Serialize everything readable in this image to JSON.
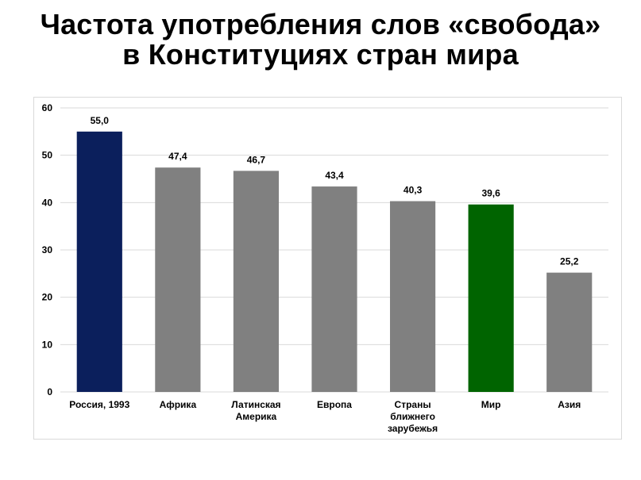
{
  "page": {
    "title_line1": "Частота употребления слов «свобода»",
    "title_line2": "в Конституциях стран мира"
  },
  "chart_data": {
    "type": "bar",
    "categories": [
      [
        "Россия, 1993"
      ],
      [
        "Африка"
      ],
      [
        "Латинская",
        "Америка"
      ],
      [
        "Европа"
      ],
      [
        "Страны",
        "ближнего",
        "зарубежья"
      ],
      [
        "Мир"
      ],
      [
        "Азия"
      ]
    ],
    "values": [
      55.0,
      47.4,
      46.7,
      43.4,
      40.3,
      39.6,
      25.2
    ],
    "data_labels": [
      "55,0",
      "47,4",
      "46,7",
      "43,4",
      "40,3",
      "39,6",
      "25,2"
    ],
    "colors": [
      "#0b1f5c",
      "#808080",
      "#808080",
      "#808080",
      "#808080",
      "#006400",
      "#808080"
    ],
    "ylim": [
      0,
      60
    ],
    "yticks": [
      "0",
      "10",
      "20",
      "30",
      "40",
      "50",
      "60"
    ],
    "grid": true,
    "legend": "none",
    "xlabel": "",
    "ylabel": ""
  }
}
